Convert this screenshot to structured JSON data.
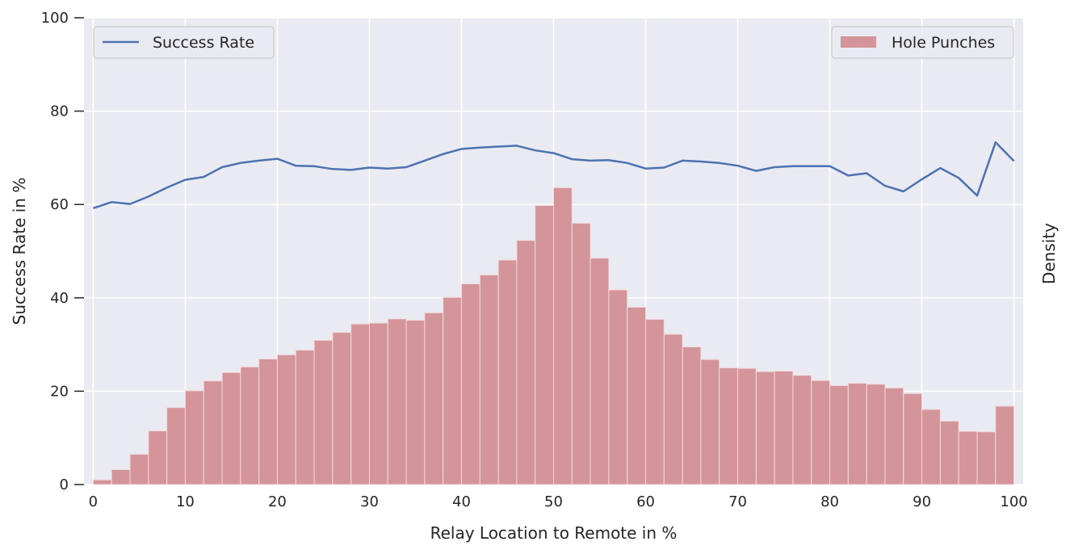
{
  "chart_data": {
    "type": "bar",
    "xlabel": "Relay Location to Remote in %",
    "ylabel": "Success Rate in %",
    "ylabel_right": "Density",
    "xlim": [
      -1,
      101
    ],
    "ylim": [
      0,
      100
    ],
    "x_ticks": [
      0,
      10,
      20,
      30,
      40,
      50,
      60,
      70,
      80,
      90,
      100
    ],
    "y_ticks": [
      0,
      20,
      40,
      60,
      80,
      100
    ],
    "grid": true,
    "colors": {
      "background": "#eaeaf2",
      "line": "#4c72b0",
      "bars": "#d4959a",
      "grid": "#ffffff"
    },
    "series": [
      {
        "name": "Success Rate",
        "type": "line",
        "legend_position": "top-left",
        "x": [
          0,
          2,
          4,
          6,
          8,
          10,
          12,
          14,
          16,
          18,
          20,
          22,
          24,
          26,
          28,
          30,
          32,
          34,
          36,
          38,
          40,
          42,
          44,
          46,
          48,
          50,
          52,
          54,
          56,
          58,
          60,
          62,
          64,
          66,
          68,
          70,
          72,
          74,
          76,
          78,
          80,
          82,
          84,
          86,
          88,
          90,
          92,
          94,
          96,
          98,
          100
        ],
        "y": [
          59.2,
          60.5,
          60.1,
          61.7,
          63.6,
          65.3,
          65.9,
          68.0,
          68.9,
          69.4,
          69.8,
          68.3,
          68.2,
          67.6,
          67.4,
          67.9,
          67.7,
          68.0,
          69.4,
          70.8,
          71.9,
          72.2,
          72.4,
          72.6,
          71.6,
          71.0,
          69.7,
          69.4,
          69.5,
          68.9,
          67.7,
          67.9,
          69.4,
          69.2,
          68.9,
          68.3,
          67.2,
          68.0,
          68.2,
          68.2,
          68.2,
          66.2,
          66.7,
          64.0,
          62.8,
          65.4,
          67.8,
          65.7,
          61.9,
          73.3,
          69.3
        ]
      },
      {
        "name": "Hole Punches",
        "type": "histogram",
        "legend_position": "top-right",
        "bin_edges": [
          0,
          2,
          4,
          6,
          8,
          10,
          12,
          14,
          16,
          18,
          20,
          22,
          24,
          26,
          28,
          30,
          32,
          34,
          36,
          38,
          40,
          42,
          44,
          46,
          48,
          50,
          52,
          54,
          56,
          58,
          60,
          62,
          64,
          66,
          68,
          70,
          72,
          74,
          76,
          78,
          80,
          82,
          84,
          86,
          88,
          90,
          92,
          94,
          96,
          98,
          100
        ],
        "values": [
          1.0,
          3.2,
          6.5,
          11.5,
          16.5,
          20.1,
          22.2,
          24.0,
          25.2,
          26.9,
          27.8,
          28.8,
          30.9,
          32.6,
          34.4,
          34.6,
          35.5,
          35.2,
          36.8,
          40.1,
          43.0,
          44.9,
          48.1,
          52.3,
          59.8,
          63.6,
          56.0,
          48.5,
          41.7,
          38.0,
          35.4,
          32.2,
          29.5,
          26.8,
          25.0,
          24.9,
          24.2,
          24.3,
          23.4,
          22.3,
          21.2,
          21.7,
          21.5,
          20.7,
          19.5,
          16.1,
          13.6,
          11.4,
          11.3,
          16.8
        ]
      }
    ]
  }
}
